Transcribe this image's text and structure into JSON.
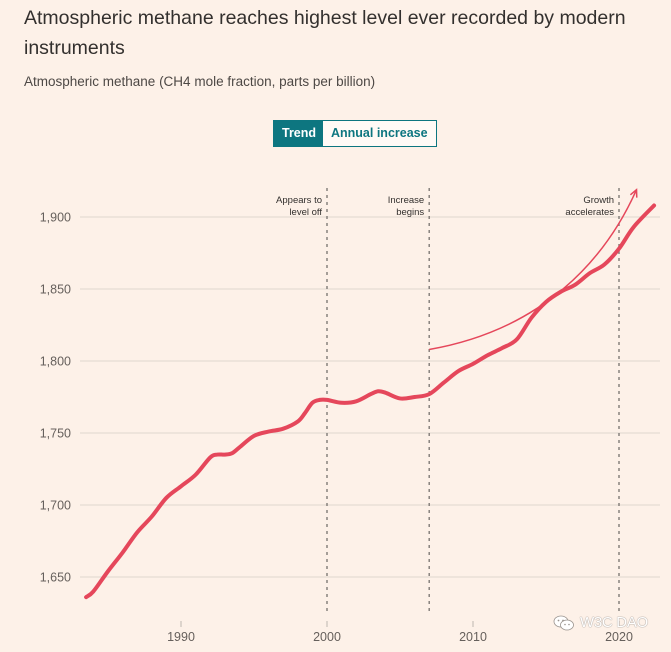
{
  "header": {
    "title": "Atmospheric methane reaches highest level ever recorded by modern instruments",
    "subtitle": "Atmospheric methane (CH4 mole fraction, parts per billion)"
  },
  "toggle": {
    "options": [
      {
        "label": "Trend",
        "active": true
      },
      {
        "label": "Annual increase",
        "active": false
      }
    ]
  },
  "watermark": {
    "icon": "wechat-icon",
    "text": "W3C DAO"
  },
  "colors": {
    "background": "#fdf1e8",
    "series_line": "#e5475b",
    "arrow": "#e5475b",
    "toggle_accent": "#0d7680",
    "gridline": "#e0d6ce",
    "annotation_line": "#7f7a76"
  },
  "chart_data": {
    "type": "line",
    "title": "Atmospheric methane reaches highest level ever recorded by modern instruments",
    "subtitle": "Atmospheric methane (CH4 mole fraction, parts per billion)",
    "xlabel": "",
    "ylabel": "",
    "xlim": [
      1983,
      2022.5
    ],
    "ylim": [
      1630,
      1925
    ],
    "grid": "horizontal",
    "yticks": [
      1650,
      1700,
      1750,
      1800,
      1850,
      1900
    ],
    "ytick_labels": [
      "1,650",
      "1,700",
      "1,750",
      "1,800",
      "1,850",
      "1,900"
    ],
    "xticks": [
      1990,
      2000,
      2010,
      2020
    ],
    "xtick_labels": [
      "1990",
      "2000",
      "2010",
      "2020"
    ],
    "series": [
      {
        "name": "Atmospheric methane trend",
        "x": [
          1983.5,
          1984,
          1985,
          1986,
          1987,
          1988,
          1989,
          1990,
          1991,
          1992,
          1992.5,
          1993,
          1993.5,
          1994,
          1995,
          1996,
          1997,
          1998,
          1998.5,
          1999,
          1999.5,
          2000,
          2001,
          2002,
          2003,
          2003.5,
          2004,
          2005,
          2006,
          2007,
          2008,
          2009,
          2010,
          2011,
          2012,
          2013,
          2014,
          2015,
          2016,
          2017,
          2018,
          2019,
          2020,
          2021,
          2022.4
        ],
        "values": [
          1636,
          1640,
          1654,
          1667,
          1681,
          1692,
          1705,
          1713,
          1721,
          1733,
          1735,
          1735,
          1736,
          1740,
          1748,
          1751,
          1753,
          1758,
          1764,
          1771,
          1773,
          1773,
          1771,
          1772,
          1777,
          1779,
          1778,
          1774,
          1775,
          1777,
          1785,
          1793,
          1798,
          1804,
          1809,
          1815,
          1830,
          1841,
          1848,
          1853,
          1861,
          1867,
          1878,
          1893,
          1908
        ]
      }
    ],
    "annotations": [
      {
        "x": 2000,
        "label": [
          "Appears to",
          "level off"
        ],
        "style": "dashed-vertical"
      },
      {
        "x": 2007,
        "label": [
          "Increase",
          "begins"
        ],
        "style": "dashed-vertical"
      },
      {
        "x": 2020,
        "label": [
          "Growth",
          "accelerates"
        ],
        "style": "dashed-vertical"
      }
    ],
    "arrow": {
      "description": "Curved arrow indicating accelerating growth",
      "from": {
        "x": 2007,
        "y": 1808
      },
      "to": {
        "x": 2021.2,
        "y": 1919
      }
    }
  }
}
